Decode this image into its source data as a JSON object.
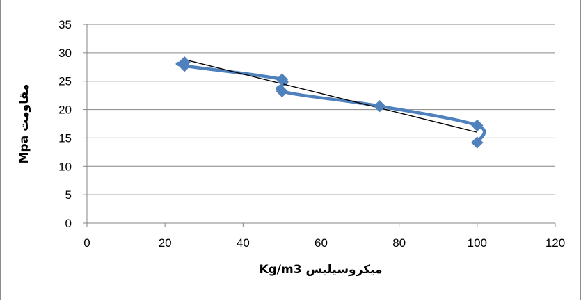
{
  "top_text": "",
  "chart_data": {
    "type": "scatter",
    "title": "",
    "xlabel": "میکروسیلیس Kg/m3",
    "ylabel": "مقاومت Mpa",
    "xlim": [
      0,
      120
    ],
    "ylim": [
      0,
      35
    ],
    "x_ticks": [
      0,
      20,
      40,
      60,
      80,
      100,
      120
    ],
    "y_ticks": [
      0,
      5,
      10,
      15,
      20,
      25,
      30,
      35
    ],
    "grid": "horizontal",
    "legend": "none",
    "series": [
      {
        "marker": "diamond",
        "smooth_line": true,
        "color": "#4f81bd",
        "points": [
          {
            "x": 25,
            "y": 28.3
          },
          {
            "x": 25,
            "y": 27.7
          },
          {
            "x": 50,
            "y": 25.3
          },
          {
            "x": 50,
            "y": 23.2
          },
          {
            "x": 75,
            "y": 20.6
          },
          {
            "x": 100,
            "y": 17.2
          },
          {
            "x": 100,
            "y": 14.2
          }
        ]
      }
    ],
    "trendline": {
      "type": "linear",
      "color": "#000000",
      "from": {
        "x": 25,
        "y": 28.8
      },
      "to": {
        "x": 100,
        "y": 16.0
      }
    }
  }
}
